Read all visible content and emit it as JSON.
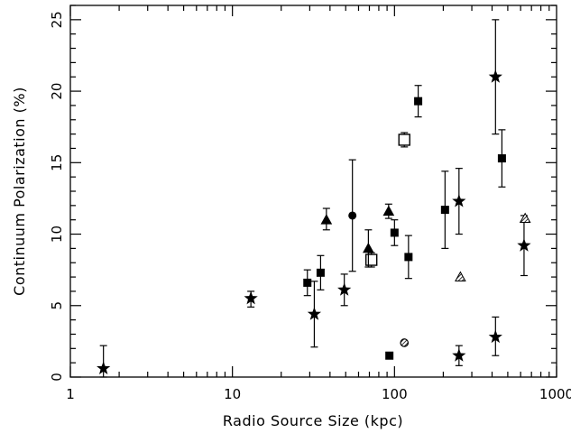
{
  "chart_data": {
    "type": "scatter",
    "xlabel": "Radio Source Size (kpc)",
    "ylabel": "Continuum Polarization (%)",
    "xscale": "log",
    "xlim": [
      1,
      1000
    ],
    "ylim": [
      0,
      26
    ],
    "grid": false,
    "legend": "none",
    "x_ticks": [
      1,
      10,
      100,
      1000
    ],
    "x_tick_labels": [
      "1",
      "10",
      "100",
      "1000"
    ],
    "y_ticks": [
      0,
      5,
      10,
      15,
      20,
      25
    ],
    "y_tick_labels": [
      "0",
      "5",
      "10",
      "15",
      "20",
      "25"
    ],
    "series": [
      {
        "marker": "star",
        "points": [
          {
            "x": 1.6,
            "y": 0.6,
            "ylo": 0.0,
            "yhi": 2.2
          },
          {
            "x": 13,
            "y": 5.5,
            "ylo": 4.9,
            "yhi": 6.0
          },
          {
            "x": 32,
            "y": 4.4,
            "ylo": 2.1,
            "yhi": 6.7
          },
          {
            "x": 49,
            "y": 6.1,
            "ylo": 5.0,
            "yhi": 7.2
          },
          {
            "x": 250,
            "y": 12.3,
            "ylo": 10.0,
            "yhi": 14.6
          },
          {
            "x": 250,
            "y": 1.5,
            "ylo": 0.8,
            "yhi": 2.2
          },
          {
            "x": 420,
            "y": 21.0,
            "ylo": 17.0,
            "yhi": 25.0
          },
          {
            "x": 420,
            "y": 2.8,
            "ylo": 1.5,
            "yhi": 4.2
          },
          {
            "x": 630,
            "y": 9.2,
            "ylo": 7.1,
            "yhi": 11.3
          }
        ]
      },
      {
        "marker": "filled-square",
        "points": [
          {
            "x": 29,
            "y": 6.6,
            "ylo": 5.7,
            "yhi": 7.5
          },
          {
            "x": 35,
            "y": 7.3,
            "ylo": 6.1,
            "yhi": 8.5
          },
          {
            "x": 93,
            "y": 1.5,
            "ylo": 1.5,
            "yhi": 1.5
          },
          {
            "x": 100,
            "y": 10.1,
            "ylo": 9.2,
            "yhi": 11.0
          },
          {
            "x": 122,
            "y": 8.4,
            "ylo": 6.9,
            "yhi": 9.9
          },
          {
            "x": 140,
            "y": 19.3,
            "ylo": 18.2,
            "yhi": 20.4
          },
          {
            "x": 205,
            "y": 11.7,
            "ylo": 9.0,
            "yhi": 14.4
          },
          {
            "x": 460,
            "y": 15.3,
            "ylo": 13.3,
            "yhi": 17.3
          }
        ]
      },
      {
        "marker": "open-square",
        "points": [
          {
            "x": 72,
            "y": 8.2,
            "ylo": 7.7,
            "yhi": 8.7
          },
          {
            "x": 115,
            "y": 16.6,
            "ylo": 16.1,
            "yhi": 17.1
          }
        ]
      },
      {
        "marker": "filled-triangle",
        "points": [
          {
            "x": 38,
            "y": 11.0,
            "ylo": 10.3,
            "yhi": 11.8
          },
          {
            "x": 69,
            "y": 9.0,
            "ylo": 7.7,
            "yhi": 10.3
          },
          {
            "x": 92,
            "y": 11.6,
            "ylo": 11.1,
            "yhi": 12.1
          }
        ]
      },
      {
        "marker": "hatched-triangle",
        "points": [
          {
            "x": 255,
            "y": 7.0,
            "ylo": 7.0,
            "yhi": 7.0
          },
          {
            "x": 640,
            "y": 11.1,
            "ylo": 11.1,
            "yhi": 11.1
          }
        ]
      },
      {
        "marker": "filled-circle",
        "points": [
          {
            "x": 55,
            "y": 11.3,
            "ylo": 7.4,
            "yhi": 15.2
          }
        ]
      },
      {
        "marker": "hatched-circle",
        "points": [
          {
            "x": 115,
            "y": 2.4,
            "ylo": 2.4,
            "yhi": 2.4
          }
        ]
      }
    ]
  }
}
